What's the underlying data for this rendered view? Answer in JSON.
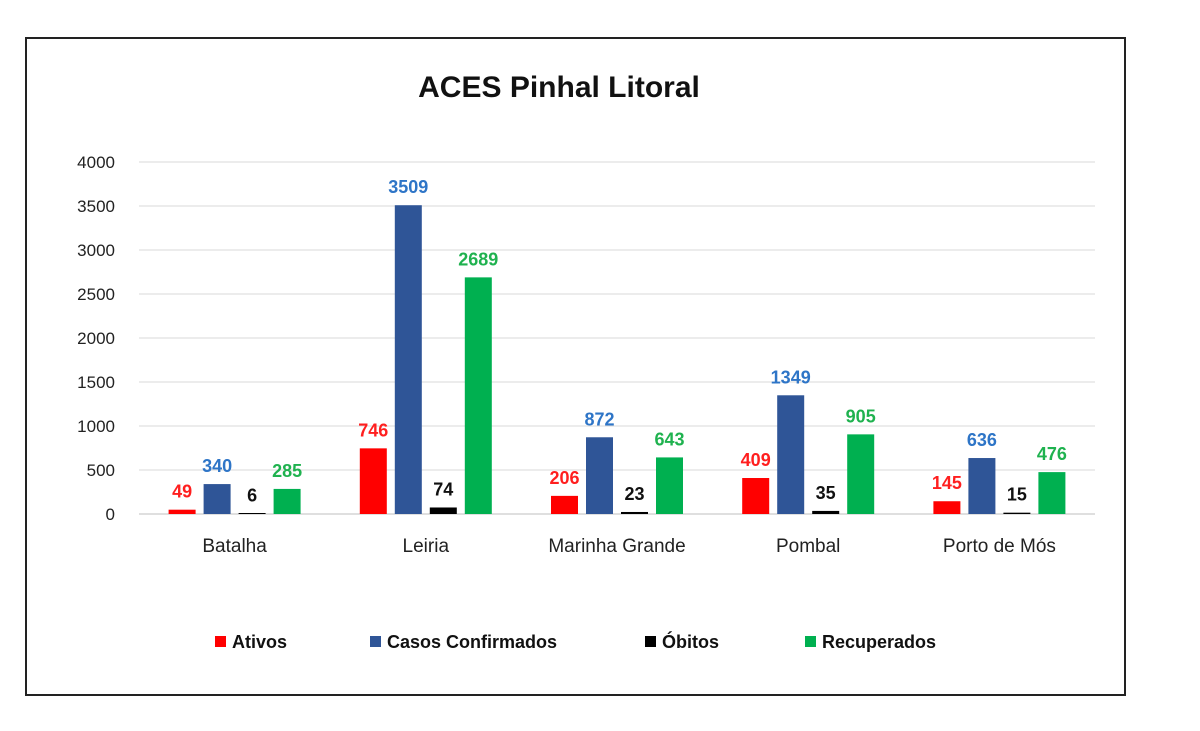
{
  "chart_data": {
    "type": "bar",
    "title": "ACES Pinhal Litoral",
    "xlabel": "",
    "ylabel": "",
    "ylim": [
      0,
      4000
    ],
    "yticks": [
      0,
      500,
      1000,
      1500,
      2000,
      2500,
      3000,
      3500,
      4000
    ],
    "grid": true,
    "legend_position": "bottom",
    "categories": [
      "Batalha",
      "Leiria",
      "Marinha Grande",
      "Pombal",
      "Porto de Mós"
    ],
    "series": [
      {
        "name": "Ativos",
        "color": "#ff0000",
        "label_color": "#ff1f1f",
        "values": [
          49,
          746,
          206,
          409,
          145
        ]
      },
      {
        "name": "Casos Confirmados",
        "color": "#2f5597",
        "label_color": "#2e75c7",
        "values": [
          340,
          3509,
          872,
          1349,
          636
        ]
      },
      {
        "name": "Óbitos",
        "color": "#000000",
        "label_color": "#111111",
        "values": [
          6,
          74,
          23,
          35,
          15
        ]
      },
      {
        "name": "Recuperados",
        "color": "#00b050",
        "label_color": "#1fb24f",
        "values": [
          285,
          2689,
          643,
          905,
          476
        ]
      }
    ]
  }
}
